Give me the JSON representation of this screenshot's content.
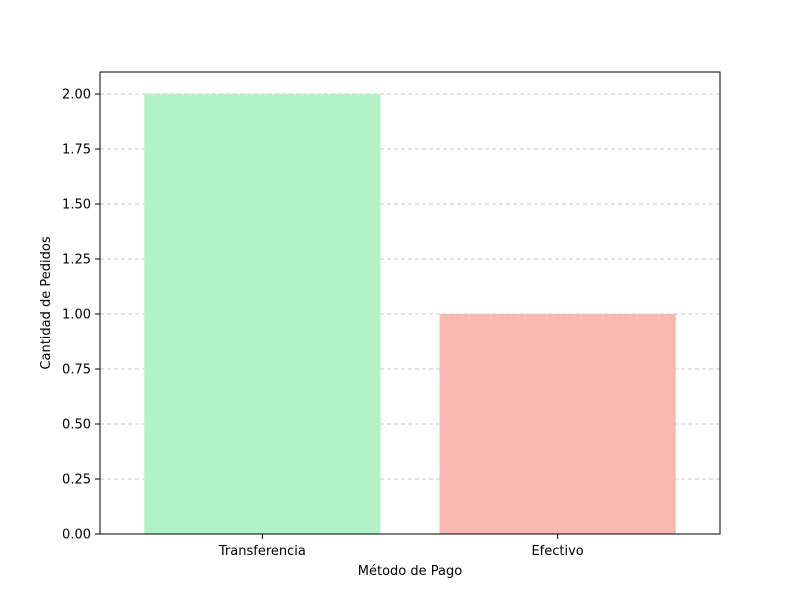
{
  "chart_data": {
    "type": "bar",
    "categories": [
      "Transferencia",
      "Efectivo"
    ],
    "values": [
      2,
      1
    ],
    "bar_colors": [
      "#b1f2c6",
      "#f9b8b1"
    ],
    "xlabel": "Método de Pago",
    "ylabel": "Cantidad de Pedidos",
    "ylim": [
      0,
      2.1
    ],
    "yticks": [
      0.0,
      0.25,
      0.5,
      0.75,
      1.0,
      1.25,
      1.5,
      1.75,
      2.0
    ],
    "ytick_labels": [
      "0.00",
      "0.25",
      "0.50",
      "0.75",
      "1.00",
      "1.25",
      "1.50",
      "1.75",
      "2.00"
    ],
    "grid": {
      "axis": "y",
      "style": "dashed",
      "color": "#c8c8c8"
    }
  }
}
